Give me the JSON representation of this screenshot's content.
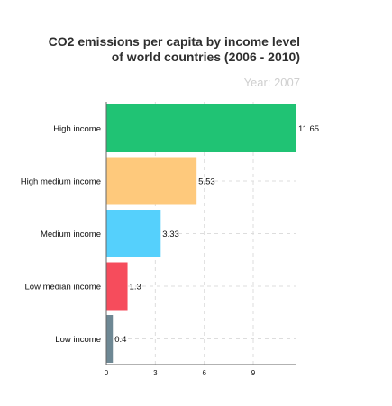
{
  "chart_data": {
    "type": "bar",
    "orientation": "horizontal",
    "title": "CO2 emissions per capita by income level of world countries (2006 - 2010)",
    "title_lines": [
      "CO2 emissions per capita by income level",
      "of world countries (2006 - 2010)"
    ],
    "subtitle": "Year: 2007",
    "categories": [
      "High income",
      "High medium income",
      "Medium income",
      "Low median income",
      "Low income"
    ],
    "values": [
      11.65,
      5.53,
      3.33,
      1.3,
      0.4
    ],
    "value_labels": [
      "11.65",
      "5.53",
      "3.33",
      "1.3",
      "0.4"
    ],
    "colors": [
      "#20c374",
      "#fec97c",
      "#55d0fc",
      "#f64c5c",
      "#6e8894"
    ],
    "x_ticks": [
      0,
      3,
      6,
      9
    ],
    "xlim": [
      0,
      11.65
    ],
    "xlabel": "",
    "ylabel": "",
    "grid": true,
    "legend": "none"
  }
}
